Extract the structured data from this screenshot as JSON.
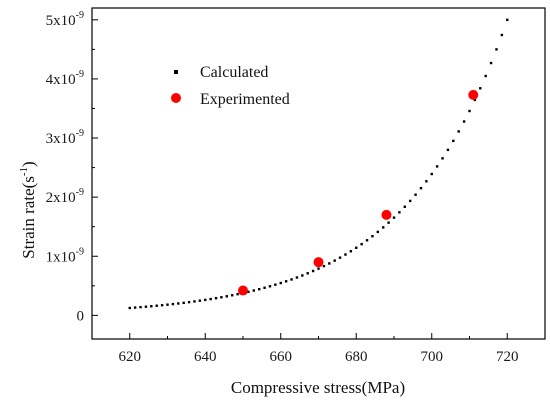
{
  "chart_data": {
    "type": "scatter",
    "xlabel": "Compressive stress(MPa)",
    "ylabel_parts": {
      "main": "Strain rate(s",
      "superscript": "-1",
      "close": ")"
    },
    "xlim": [
      610,
      730
    ],
    "ylim": [
      -4e-10,
      5.2e-09
    ],
    "x_ticks": [
      620,
      640,
      660,
      680,
      700,
      720
    ],
    "x_tick_labels": [
      "620",
      "640",
      "660",
      "680",
      "700",
      "720"
    ],
    "y_ticks": [
      0,
      1e-09,
      2e-09,
      3e-09,
      4e-09,
      5e-09
    ],
    "y_tick_labels": [
      {
        "base": "0",
        "exp": ""
      },
      {
        "base": "1x10",
        "exp": "-9"
      },
      {
        "base": "2x10",
        "exp": "-9"
      },
      {
        "base": "3x10",
        "exp": "-9"
      },
      {
        "base": "4x10",
        "exp": "-9"
      },
      {
        "base": "5x10",
        "exp": "-9"
      }
    ],
    "grid": false,
    "legend_position": "top-left",
    "series": [
      {
        "name": "Calculated",
        "marker": "small-square-dots",
        "color": "#000000",
        "model": {
          "form": "exponential",
          "x0": 620,
          "x1": 720,
          "y_at_x0": 1.25e-10,
          "y_at_x1": 5e-09,
          "n_points": 71
        }
      },
      {
        "name": "Experimented",
        "marker": "circle",
        "color": "#ff0000",
        "points": [
          {
            "x": 650,
            "y": 4.2e-10
          },
          {
            "x": 670,
            "y": 9e-10
          },
          {
            "x": 688,
            "y": 1.7e-09
          },
          {
            "x": 711,
            "y": 3.73e-09
          }
        ]
      }
    ]
  }
}
